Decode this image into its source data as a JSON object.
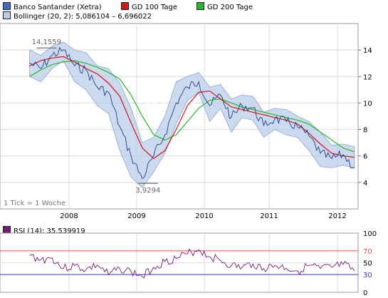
{
  "legend": {
    "stock": {
      "label": "Banco Santander (Xetra)",
      "color": "#4169c8"
    },
    "gd100": {
      "label": "GD 100 Tage",
      "color": "#dd1111"
    },
    "gd200": {
      "label": "GD 200 Tage",
      "color": "#22bb22"
    },
    "bollinger": {
      "label": "Bollinger (20, 2): 5,086104 – 6,696022",
      "color": "#b9cde9"
    },
    "rsi": {
      "label": "RSI (14): 35,539919",
      "color": "#7a1a7a"
    }
  },
  "footnote": "1 Tick = 1 Woche",
  "watermark": "RIVA",
  "chart_data": [
    {
      "type": "line",
      "title": "",
      "x": [
        "2007-06",
        "2007-08",
        "2007-10",
        "2007-12",
        "2008-02",
        "2008-04",
        "2008-06",
        "2008-08",
        "2008-10",
        "2008-12",
        "2009-02",
        "2009-04",
        "2009-06",
        "2009-08",
        "2009-10",
        "2009-12",
        "2010-02",
        "2010-04",
        "2010-06",
        "2010-08",
        "2010-10",
        "2010-12",
        "2011-02",
        "2011-04",
        "2011-06",
        "2011-08",
        "2011-10",
        "2011-12",
        "2012-02",
        "2012-04"
      ],
      "x_tick_labels": [
        "2008",
        "2009",
        "2010",
        "2011",
        "2012"
      ],
      "y_tick_labels": [
        "4",
        "6",
        "8",
        "10",
        "12",
        "14"
      ],
      "ylim": [
        2,
        16
      ],
      "annotations": [
        {
          "text": "14,1559",
          "x": "2007-09",
          "y": 14.1559
        },
        {
          "text": "3,9294",
          "x": "2009-03",
          "y": 3.9294
        }
      ],
      "series": [
        {
          "name": "Banco Santander (Xetra)",
          "values": [
            13.0,
            12.6,
            13.6,
            14.0,
            12.8,
            12.5,
            11.2,
            10.8,
            8.2,
            6.0,
            4.3,
            6.0,
            7.6,
            10.0,
            11.2,
            11.6,
            9.8,
            10.6,
            8.9,
            9.8,
            9.6,
            8.3,
            8.8,
            8.6,
            8.2,
            7.5,
            6.2,
            5.8,
            6.1,
            5.1
          ]
        },
        {
          "name": "GD 100 Tage",
          "values": [
            12.8,
            13.2,
            13.4,
            13.5,
            13.1,
            12.6,
            12.2,
            11.5,
            10.5,
            8.5,
            6.6,
            5.8,
            6.4,
            8.0,
            9.8,
            10.8,
            10.9,
            10.3,
            9.7,
            9.5,
            9.3,
            9.1,
            8.9,
            8.7,
            8.4,
            7.7,
            6.9,
            6.2,
            6.0,
            5.9
          ]
        },
        {
          "name": "GD 200 Tage",
          "values": [
            12.0,
            12.5,
            12.9,
            13.1,
            13.2,
            13.0,
            12.7,
            12.3,
            11.8,
            10.6,
            9.0,
            7.6,
            7.2,
            7.6,
            8.6,
            9.6,
            10.2,
            10.3,
            10.0,
            9.7,
            9.5,
            9.3,
            9.1,
            8.9,
            8.7,
            8.4,
            7.8,
            7.2,
            6.6,
            6.3
          ]
        },
        {
          "name": "Bollinger upper",
          "values": [
            14.0,
            13.6,
            14.3,
            14.6,
            14.0,
            13.8,
            12.8,
            12.6,
            11.5,
            9.6,
            7.0,
            7.4,
            9.0,
            11.6,
            12.0,
            12.3,
            11.2,
            11.4,
            10.3,
            10.6,
            10.5,
            9.3,
            9.6,
            9.5,
            9.0,
            8.6,
            7.8,
            6.8,
            6.9,
            6.7
          ]
        },
        {
          "name": "Bollinger lower",
          "values": [
            12.0,
            11.6,
            12.6,
            13.2,
            11.6,
            11.0,
            9.8,
            9.2,
            6.4,
            4.4,
            3.6,
            4.8,
            6.2,
            8.4,
            10.2,
            10.8,
            8.6,
            9.6,
            7.8,
            8.9,
            8.7,
            7.4,
            8.0,
            7.6,
            7.4,
            6.4,
            5.2,
            5.1,
            5.3,
            5.1
          ]
        }
      ]
    },
    {
      "type": "line",
      "title": "",
      "y_tick_labels": [
        "0",
        "30",
        "50",
        "70",
        "100"
      ],
      "ylim": [
        0,
        100
      ],
      "reference_lines": [
        {
          "value": 70,
          "color": "#ff4444"
        },
        {
          "value": 30,
          "color": "#3333cc"
        }
      ],
      "series": [
        {
          "name": "RSI (14)",
          "values": [
            62,
            55,
            58,
            40,
            45,
            38,
            46,
            30,
            40,
            35,
            26,
            42,
            52,
            57,
            65,
            72,
            60,
            54,
            45,
            42,
            48,
            40,
            45,
            41,
            36,
            45,
            40,
            42,
            47,
            36
          ]
        }
      ]
    }
  ]
}
